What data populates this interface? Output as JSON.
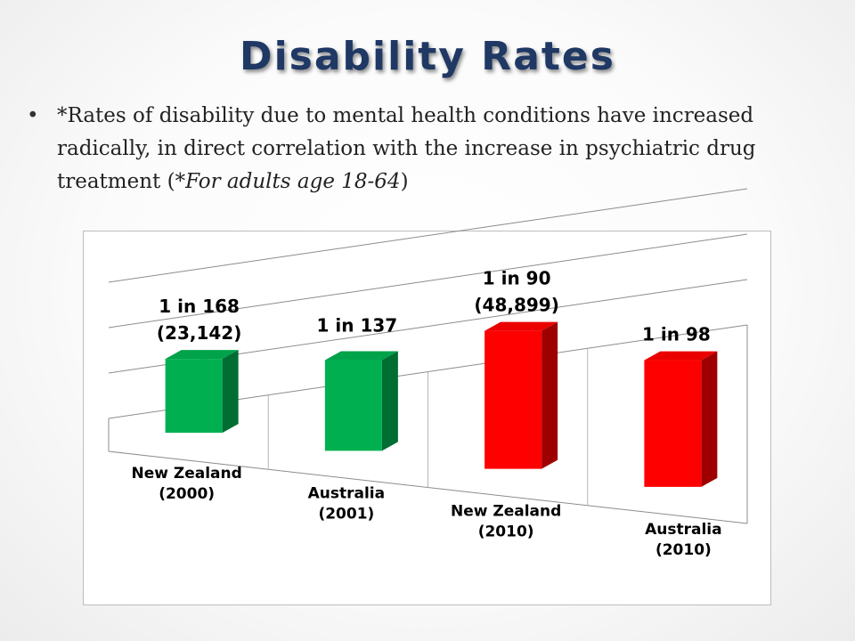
{
  "slide": {
    "title": "Disability Rates",
    "bullet": {
      "symbol": "•",
      "text_main": "*Rates of disability due to mental health conditions have increased radically, in direct correlation with the increase in psychiatric drug treatment (",
      "text_italic": "*For adults age 18-64",
      "text_end": ")"
    }
  },
  "chart_data": {
    "type": "bar",
    "style": "3d-column",
    "categories": [
      [
        "New Zealand",
        "(2000)"
      ],
      [
        "Australia",
        "(2001)"
      ],
      [
        "New Zealand",
        "(2010)"
      ],
      [
        "Australia",
        "(2010)"
      ]
    ],
    "values": [
      0.00595,
      0.0073,
      0.01111,
      0.0102
    ],
    "data_labels": [
      [
        "1 in 168",
        "(23,142)"
      ],
      [
        "1 in 137"
      ],
      [
        "1 in 90",
        "(48,899)"
      ],
      [
        "1 in 98"
      ]
    ],
    "colors": [
      "#00b050",
      "#00b050",
      "#ff0000",
      "#ff0000"
    ],
    "grid": true,
    "legend": "none"
  }
}
